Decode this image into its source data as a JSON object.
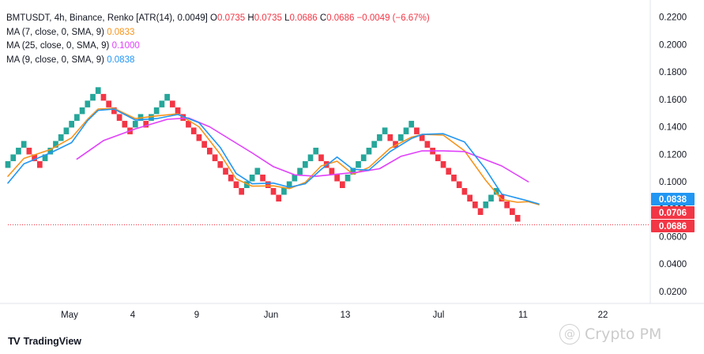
{
  "header": {
    "symbol_line": "BMTUSDT, 4h, Binance, Renko [ATR(14), 0.0049]",
    "ohlc": [
      {
        "k": "O",
        "v": "0.0735"
      },
      {
        "k": "H",
        "v": "0.0735"
      },
      {
        "k": "L",
        "v": "0.0686"
      },
      {
        "k": "C",
        "v": "0.0686"
      }
    ],
    "change": "−0.0049 (−6.67%)"
  },
  "indicators": [
    {
      "label": "MA (7, close, 0, SMA, 9)",
      "value": "0.0833",
      "color": "#f7931a"
    },
    {
      "label": "MA (25, close, 0, SMA, 9)",
      "value": "0.1000",
      "color": "#e040fb"
    },
    {
      "label": "MA (9, close, 0, SMA, 9)",
      "value": "0.0838",
      "color": "#2196f3"
    }
  ],
  "price_badges": [
    {
      "text": "0.0838",
      "value": 0.0838,
      "color": "#2196f3"
    },
    {
      "text": "0.0706",
      "value": 0.0706,
      "color": "#f23645"
    },
    {
      "text": "0.0686",
      "value": 0.0686,
      "color": "#f23645"
    }
  ],
  "footer": {
    "brand": "TradingView",
    "watermark": "Crypto PM"
  },
  "chart_data": {
    "type": "renko",
    "box_size": 0.0049,
    "x_tick_labels": [
      "May",
      "4",
      "9",
      "Jun",
      "13",
      "Jul",
      "11",
      "22"
    ],
    "y_tick_labels": [
      "0.2200",
      "0.2000",
      "0.1800",
      "0.1600",
      "0.1400",
      "0.1200",
      "0.1000",
      "0.0800",
      "0.0600",
      "0.0400",
      "0.0200"
    ],
    "ylim": [
      0.01,
      0.223
    ],
    "grid": false,
    "last_price": 0.0686,
    "colors": {
      "up": "#26a69a",
      "down": "#f23645"
    },
    "bricks": [
      [
        0.1101,
        0.115
      ],
      [
        0.115,
        0.1199
      ],
      [
        0.1199,
        0.1248
      ],
      [
        0.1248,
        0.1297
      ],
      [
        0.1248,
        0.1199
      ],
      [
        0.1199,
        0.115
      ],
      [
        0.115,
        0.1101
      ],
      [
        0.115,
        0.1199
      ],
      [
        0.1199,
        0.1248
      ],
      [
        0.1248,
        0.1297
      ],
      [
        0.1297,
        0.1346
      ],
      [
        0.1346,
        0.1395
      ],
      [
        0.1395,
        0.1444
      ],
      [
        0.1444,
        0.1493
      ],
      [
        0.1493,
        0.1542
      ],
      [
        0.1542,
        0.1591
      ],
      [
        0.1591,
        0.164
      ],
      [
        0.164,
        0.1689
      ],
      [
        0.164,
        0.1591
      ],
      [
        0.1591,
        0.1542
      ],
      [
        0.1542,
        0.1493
      ],
      [
        0.1493,
        0.1444
      ],
      [
        0.1444,
        0.1395
      ],
      [
        0.1395,
        0.1346
      ],
      [
        0.1395,
        0.1444
      ],
      [
        0.1444,
        0.1493
      ],
      [
        0.1444,
        0.1395
      ],
      [
        0.1444,
        0.1493
      ],
      [
        0.1493,
        0.1542
      ],
      [
        0.1542,
        0.1591
      ],
      [
        0.1591,
        0.164
      ],
      [
        0.1591,
        0.1542
      ],
      [
        0.1542,
        0.1493
      ],
      [
        0.1493,
        0.1444
      ],
      [
        0.1444,
        0.1395
      ],
      [
        0.1395,
        0.1346
      ],
      [
        0.1346,
        0.1297
      ],
      [
        0.1297,
        0.1248
      ],
      [
        0.1248,
        0.1199
      ],
      [
        0.1199,
        0.115
      ],
      [
        0.115,
        0.1101
      ],
      [
        0.1101,
        0.1052
      ],
      [
        0.1052,
        0.1003
      ],
      [
        0.1003,
        0.0954
      ],
      [
        0.0954,
        0.0905
      ],
      [
        0.0954,
        0.1003
      ],
      [
        0.1003,
        0.1052
      ],
      [
        0.1052,
        0.1101
      ],
      [
        0.1052,
        0.1003
      ],
      [
        0.1003,
        0.0954
      ],
      [
        0.0954,
        0.0905
      ],
      [
        0.0905,
        0.0856
      ],
      [
        0.0905,
        0.0954
      ],
      [
        0.0954,
        0.1003
      ],
      [
        0.1003,
        0.1052
      ],
      [
        0.1052,
        0.1101
      ],
      [
        0.1101,
        0.115
      ],
      [
        0.115,
        0.1199
      ],
      [
        0.1199,
        0.1248
      ],
      [
        0.1199,
        0.115
      ],
      [
        0.115,
        0.1101
      ],
      [
        0.1101,
        0.1052
      ],
      [
        0.1052,
        0.1003
      ],
      [
        0.1003,
        0.0954
      ],
      [
        0.1003,
        0.1052
      ],
      [
        0.1052,
        0.1101
      ],
      [
        0.1101,
        0.115
      ],
      [
        0.115,
        0.1199
      ],
      [
        0.1199,
        0.1248
      ],
      [
        0.1248,
        0.1297
      ],
      [
        0.1297,
        0.1346
      ],
      [
        0.1346,
        0.1395
      ],
      [
        0.1346,
        0.1297
      ],
      [
        0.1297,
        0.1248
      ],
      [
        0.1297,
        0.1346
      ],
      [
        0.1346,
        0.1395
      ],
      [
        0.1395,
        0.1444
      ],
      [
        0.1395,
        0.1346
      ],
      [
        0.1346,
        0.1297
      ],
      [
        0.1297,
        0.1248
      ],
      [
        0.1248,
        0.1199
      ],
      [
        0.1199,
        0.115
      ],
      [
        0.115,
        0.1101
      ],
      [
        0.1101,
        0.1052
      ],
      [
        0.1052,
        0.1003
      ],
      [
        0.1003,
        0.0954
      ],
      [
        0.0954,
        0.0905
      ],
      [
        0.0905,
        0.0856
      ],
      [
        0.0856,
        0.0807
      ],
      [
        0.0807,
        0.0758
      ],
      [
        0.0807,
        0.0856
      ],
      [
        0.0856,
        0.0905
      ],
      [
        0.0905,
        0.0954
      ],
      [
        0.0905,
        0.0856
      ],
      [
        0.0856,
        0.0807
      ],
      [
        0.0807,
        0.0758
      ],
      [
        0.0758,
        0.0709
      ]
    ],
    "series": [
      {
        "name": "MA (7, close, 0, SMA, 9)",
        "color": "#f7931a",
        "points": [
          [
            0,
            0.104
          ],
          [
            3,
            0.117
          ],
          [
            8,
            0.1235
          ],
          [
            12,
            0.132
          ],
          [
            15,
            0.1455
          ],
          [
            17,
            0.153
          ],
          [
            20,
            0.1535
          ],
          [
            24,
            0.146
          ],
          [
            28,
            0.148
          ],
          [
            32,
            0.1495
          ],
          [
            36,
            0.14
          ],
          [
            40,
            0.12
          ],
          [
            43,
            0.102
          ],
          [
            46,
            0.0968
          ],
          [
            50,
            0.097
          ],
          [
            53,
            0.095
          ],
          [
            56,
            0.0995
          ],
          [
            59,
            0.1115
          ],
          [
            62,
            0.115
          ],
          [
            65,
            0.1055
          ],
          [
            68,
            0.1105
          ],
          [
            72,
            0.1245
          ],
          [
            76,
            0.1325
          ],
          [
            78,
            0.1345
          ],
          [
            82,
            0.134
          ],
          [
            86,
            0.1225
          ],
          [
            90,
            0.101
          ],
          [
            93,
            0.087
          ],
          [
            96,
            0.085
          ],
          [
            98,
            0.0855
          ],
          [
            100,
            0.0833
          ]
        ]
      },
      {
        "name": "MA (25, close, 0, SMA, 9)",
        "color": "#e040fb",
        "points": [
          [
            13,
            0.1165
          ],
          [
            18,
            0.13
          ],
          [
            24,
            0.1385
          ],
          [
            30,
            0.1455
          ],
          [
            34,
            0.1465
          ],
          [
            38,
            0.14
          ],
          [
            42,
            0.1305
          ],
          [
            46,
            0.121
          ],
          [
            50,
            0.111
          ],
          [
            54,
            0.105
          ],
          [
            58,
            0.104
          ],
          [
            62,
            0.1055
          ],
          [
            66,
            0.107
          ],
          [
            70,
            0.1095
          ],
          [
            74,
            0.1185
          ],
          [
            78,
            0.1225
          ],
          [
            82,
            0.1225
          ],
          [
            86,
            0.122
          ],
          [
            89,
            0.1175
          ],
          [
            93,
            0.1115
          ],
          [
            98,
            0.1
          ]
        ]
      },
      {
        "name": "MA (9, close, 0, SMA, 9)",
        "color": "#2196f3",
        "points": [
          [
            0,
            0.099
          ],
          [
            3,
            0.113
          ],
          [
            8,
            0.121
          ],
          [
            12,
            0.1285
          ],
          [
            15,
            0.1445
          ],
          [
            17,
            0.152
          ],
          [
            20,
            0.153
          ],
          [
            24,
            0.145
          ],
          [
            28,
            0.146
          ],
          [
            32,
            0.149
          ],
          [
            36,
            0.143
          ],
          [
            40,
            0.125
          ],
          [
            43,
            0.106
          ],
          [
            46,
            0.0985
          ],
          [
            50,
            0.099
          ],
          [
            53,
            0.096
          ],
          [
            56,
            0.0985
          ],
          [
            59,
            0.109
          ],
          [
            62,
            0.118
          ],
          [
            65,
            0.109
          ],
          [
            68,
            0.1085
          ],
          [
            72,
            0.122
          ],
          [
            76,
            0.1315
          ],
          [
            78,
            0.1345
          ],
          [
            82,
            0.135
          ],
          [
            86,
            0.129
          ],
          [
            90,
            0.109
          ],
          [
            93,
            0.091
          ],
          [
            96,
            0.088
          ],
          [
            98,
            0.086
          ],
          [
            100,
            0.0838
          ]
        ]
      }
    ]
  }
}
